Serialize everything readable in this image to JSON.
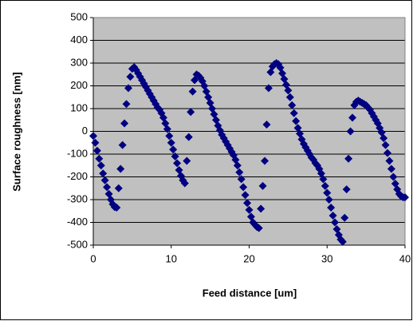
{
  "chart_data": {
    "type": "scatter",
    "xlabel": "Feed distance [um]",
    "ylabel": "Surface roughness [nm]",
    "xlim": [
      0,
      40
    ],
    "xticks": [
      0,
      10,
      20,
      30,
      40
    ],
    "ylim": [
      -500,
      500
    ],
    "yticks": [
      -500,
      -400,
      -300,
      -200,
      -100,
      0,
      100,
      200,
      300,
      400,
      500
    ],
    "grid": true,
    "marker": "diamond",
    "series": [
      {
        "color": "#000080",
        "x": [
          0,
          0.25,
          0.5,
          0.75,
          1,
          1.25,
          1.5,
          1.75,
          2,
          2.25,
          2.5,
          2.75,
          3,
          3.25,
          3.5,
          3.75,
          4,
          4.25,
          4.5,
          4.75,
          5,
          5.25,
          5.5,
          5.75,
          6,
          6.25,
          6.5,
          6.75,
          7,
          7.25,
          7.5,
          7.75,
          8,
          8.25,
          8.5,
          8.75,
          9,
          9.25,
          9.5,
          9.75,
          10,
          10.25,
          10.5,
          10.75,
          11,
          11.25,
          11.5,
          11.75,
          12,
          12.25,
          12.5,
          12.75,
          13,
          13.25,
          13.5,
          13.75,
          14,
          14.25,
          14.5,
          14.75,
          15,
          15.25,
          15.5,
          15.75,
          16,
          16.25,
          16.5,
          16.75,
          17,
          17.25,
          17.5,
          17.75,
          18,
          18.25,
          18.5,
          18.75,
          19,
          19.25,
          19.5,
          19.75,
          20,
          20.25,
          20.5,
          20.75,
          21,
          21.25,
          21.5,
          21.75,
          22,
          22.25,
          22.5,
          22.75,
          23,
          23.25,
          23.5,
          23.75,
          24,
          24.25,
          24.5,
          24.75,
          25,
          25.25,
          25.5,
          25.75,
          26,
          26.25,
          26.5,
          26.75,
          27,
          27.25,
          27.5,
          27.75,
          28,
          28.25,
          28.5,
          28.75,
          29,
          29.25,
          29.5,
          29.75,
          30,
          30.25,
          30.5,
          30.75,
          31,
          31.25,
          31.5,
          31.75,
          32,
          32.25,
          32.5,
          32.75,
          33,
          33.25,
          33.5,
          33.75,
          34,
          34.25,
          34.5,
          34.75,
          35,
          35.25,
          35.5,
          35.75,
          36,
          36.25,
          36.5,
          36.75,
          37,
          37.25,
          37.5,
          37.75,
          38,
          38.25,
          38.5,
          38.75,
          39,
          39.25,
          39.5,
          39.75,
          40
        ],
        "values": [
          -20,
          -50,
          -85,
          -120,
          -150,
          -185,
          -215,
          -245,
          -275,
          -300,
          -320,
          -333,
          -335,
          -250,
          -165,
          -60,
          35,
          120,
          190,
          240,
          275,
          282,
          270,
          255,
          240,
          225,
          210,
          195,
          180,
          165,
          150,
          135,
          120,
          105,
          95,
          80,
          60,
          35,
          10,
          -20,
          -50,
          -80,
          -110,
          -140,
          -170,
          -195,
          -215,
          -228,
          -130,
          -25,
          85,
          175,
          225,
          250,
          245,
          235,
          220,
          200,
          175,
          150,
          125,
          100,
          75,
          50,
          25,
          5,
          -15,
          -30,
          -45,
          -60,
          -75,
          -90,
          -105,
          -125,
          -150,
          -180,
          -210,
          -245,
          -280,
          -315,
          -345,
          -375,
          -400,
          -410,
          -420,
          -425,
          -340,
          -240,
          -130,
          30,
          190,
          260,
          285,
          295,
          300,
          295,
          280,
          255,
          230,
          205,
          180,
          150,
          115,
          80,
          45,
          15,
          -10,
          -35,
          -55,
          -70,
          -85,
          -100,
          -115,
          -125,
          -140,
          -150,
          -165,
          -185,
          -210,
          -240,
          -270,
          -300,
          -335,
          -370,
          -400,
          -430,
          -455,
          -475,
          -485,
          -380,
          -255,
          -120,
          0,
          60,
          115,
          130,
          135,
          130,
          125,
          120,
          115,
          105,
          95,
          80,
          65,
          50,
          35,
          15,
          -5,
          -30,
          -60,
          -95,
          -130,
          -165,
          -200,
          -230,
          -255,
          -275,
          -285,
          -290,
          -290
        ]
      }
    ]
  }
}
